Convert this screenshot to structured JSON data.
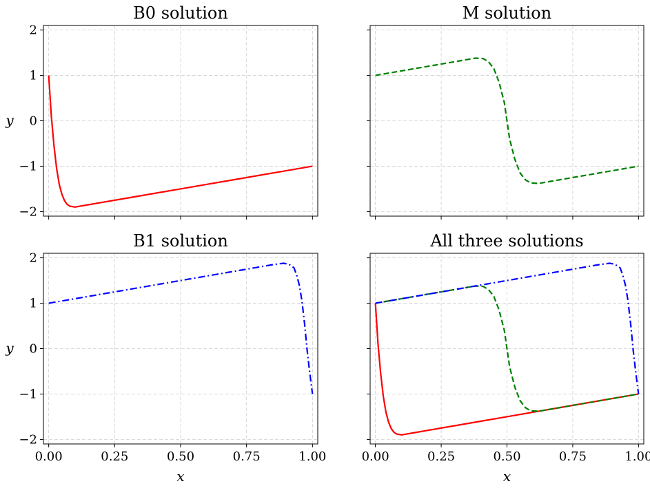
{
  "chart_data": [
    {
      "type": "line",
      "title": "B0 solution",
      "xlabel": "",
      "ylabel": "y",
      "xlim": [
        -0.02,
        1.02
      ],
      "ylim": [
        -2.1,
        2.1
      ],
      "xticks": [
        0.0,
        0.25,
        0.5,
        0.75,
        1.0
      ],
      "yticks": [
        -2,
        -1,
        0,
        1,
        2
      ],
      "ytick_labels": [
        "−2",
        "−1",
        "0",
        "1",
        "2"
      ],
      "xtick_labels": [
        "",
        "",
        "",
        "",
        ""
      ],
      "grid": true,
      "series": [
        {
          "color": "#ff0000",
          "style": "solid",
          "x": [
            0.0,
            0.01,
            0.02,
            0.03,
            0.04,
            0.05,
            0.06,
            0.07,
            0.08,
            0.09,
            0.1,
            0.15,
            0.2,
            0.3,
            0.4,
            0.5,
            0.6,
            0.7,
            0.8,
            0.9,
            1.0
          ],
          "y": [
            1.0,
            0.1,
            -0.55,
            -1.05,
            -1.4,
            -1.62,
            -1.76,
            -1.84,
            -1.88,
            -1.89,
            -1.9,
            -1.85,
            -1.8,
            -1.7,
            -1.6,
            -1.5,
            -1.4,
            -1.3,
            -1.2,
            -1.1,
            -1.0
          ]
        }
      ]
    },
    {
      "type": "line",
      "title": "M solution",
      "xlabel": "",
      "ylabel": "",
      "xlim": [
        -0.02,
        1.02
      ],
      "ylim": [
        -2.1,
        2.1
      ],
      "xticks": [
        0.0,
        0.25,
        0.5,
        0.75,
        1.0
      ],
      "yticks": [
        -2,
        -1,
        0,
        1,
        2
      ],
      "ytick_labels": [
        "",
        "",
        "",
        "",
        ""
      ],
      "xtick_labels": [
        "",
        "",
        "",
        "",
        ""
      ],
      "grid": true,
      "series": [
        {
          "color": "#008000",
          "style": "dashed",
          "x": [
            0.0,
            0.1,
            0.2,
            0.3,
            0.38,
            0.41,
            0.43,
            0.45,
            0.47,
            0.49,
            0.5,
            0.51,
            0.53,
            0.55,
            0.57,
            0.59,
            0.62,
            0.7,
            0.8,
            0.9,
            1.0
          ],
          "y": [
            1.0,
            1.1,
            1.2,
            1.3,
            1.38,
            1.37,
            1.3,
            1.15,
            0.85,
            0.4,
            0.0,
            -0.4,
            -0.85,
            -1.15,
            -1.3,
            -1.37,
            -1.38,
            -1.3,
            -1.2,
            -1.1,
            -1.0
          ]
        }
      ]
    },
    {
      "type": "line",
      "title": "B1 solution",
      "xlabel": "x",
      "ylabel": "y",
      "xlim": [
        -0.02,
        1.02
      ],
      "ylim": [
        -2.1,
        2.1
      ],
      "xticks": [
        0.0,
        0.25,
        0.5,
        0.75,
        1.0
      ],
      "yticks": [
        -2,
        -1,
        0,
        1,
        2
      ],
      "ytick_labels": [
        "−2",
        "−1",
        "0",
        "1",
        "2"
      ],
      "xtick_labels": [
        "0.00",
        "0.25",
        "0.50",
        "0.75",
        "1.00"
      ],
      "grid": true,
      "series": [
        {
          "color": "#0000ff",
          "style": "dashdot",
          "x": [
            0.0,
            0.1,
            0.2,
            0.3,
            0.4,
            0.5,
            0.6,
            0.7,
            0.8,
            0.85,
            0.89,
            0.91,
            0.93,
            0.94,
            0.95,
            0.96,
            0.97,
            0.98,
            0.99,
            1.0
          ],
          "y": [
            1.0,
            1.1,
            1.2,
            1.3,
            1.4,
            1.5,
            1.6,
            1.7,
            1.8,
            1.85,
            1.88,
            1.86,
            1.78,
            1.62,
            1.4,
            1.05,
            0.55,
            -0.05,
            -0.55,
            -1.0
          ]
        }
      ]
    },
    {
      "type": "line",
      "title": "All three solutions",
      "xlabel": "x",
      "ylabel": "",
      "xlim": [
        -0.02,
        1.02
      ],
      "ylim": [
        -2.1,
        2.1
      ],
      "xticks": [
        0.0,
        0.25,
        0.5,
        0.75,
        1.0
      ],
      "yticks": [
        -2,
        -1,
        0,
        1,
        2
      ],
      "ytick_labels": [
        "",
        "",
        "",
        "",
        ""
      ],
      "xtick_labels": [
        "0.00",
        "0.25",
        "0.50",
        "0.75",
        "1.00"
      ],
      "grid": true,
      "series": [
        {
          "color": "#ff0000",
          "style": "solid",
          "x": [
            0.0,
            0.01,
            0.02,
            0.03,
            0.04,
            0.05,
            0.06,
            0.07,
            0.08,
            0.09,
            0.1,
            0.15,
            0.2,
            0.3,
            0.4,
            0.5,
            0.6,
            0.7,
            0.8,
            0.9,
            1.0
          ],
          "y": [
            1.0,
            0.1,
            -0.55,
            -1.05,
            -1.4,
            -1.62,
            -1.76,
            -1.84,
            -1.88,
            -1.89,
            -1.9,
            -1.85,
            -1.8,
            -1.7,
            -1.6,
            -1.5,
            -1.4,
            -1.3,
            -1.2,
            -1.1,
            -1.0
          ]
        },
        {
          "color": "#008000",
          "style": "dashed",
          "x": [
            0.0,
            0.1,
            0.2,
            0.3,
            0.38,
            0.41,
            0.43,
            0.45,
            0.47,
            0.49,
            0.5,
            0.51,
            0.53,
            0.55,
            0.57,
            0.59,
            0.62,
            0.7,
            0.8,
            0.9,
            1.0
          ],
          "y": [
            1.0,
            1.1,
            1.2,
            1.3,
            1.38,
            1.37,
            1.3,
            1.15,
            0.85,
            0.4,
            0.0,
            -0.4,
            -0.85,
            -1.15,
            -1.3,
            -1.37,
            -1.38,
            -1.3,
            -1.2,
            -1.1,
            -1.0
          ]
        },
        {
          "color": "#0000ff",
          "style": "dashdot",
          "x": [
            0.0,
            0.1,
            0.2,
            0.3,
            0.4,
            0.5,
            0.6,
            0.7,
            0.8,
            0.85,
            0.89,
            0.91,
            0.93,
            0.94,
            0.95,
            0.96,
            0.97,
            0.98,
            0.99,
            1.0
          ],
          "y": [
            1.0,
            1.1,
            1.2,
            1.3,
            1.4,
            1.5,
            1.6,
            1.7,
            1.8,
            1.85,
            1.88,
            1.86,
            1.78,
            1.62,
            1.4,
            1.05,
            0.55,
            -0.05,
            -0.55,
            -1.0
          ]
        }
      ]
    }
  ]
}
